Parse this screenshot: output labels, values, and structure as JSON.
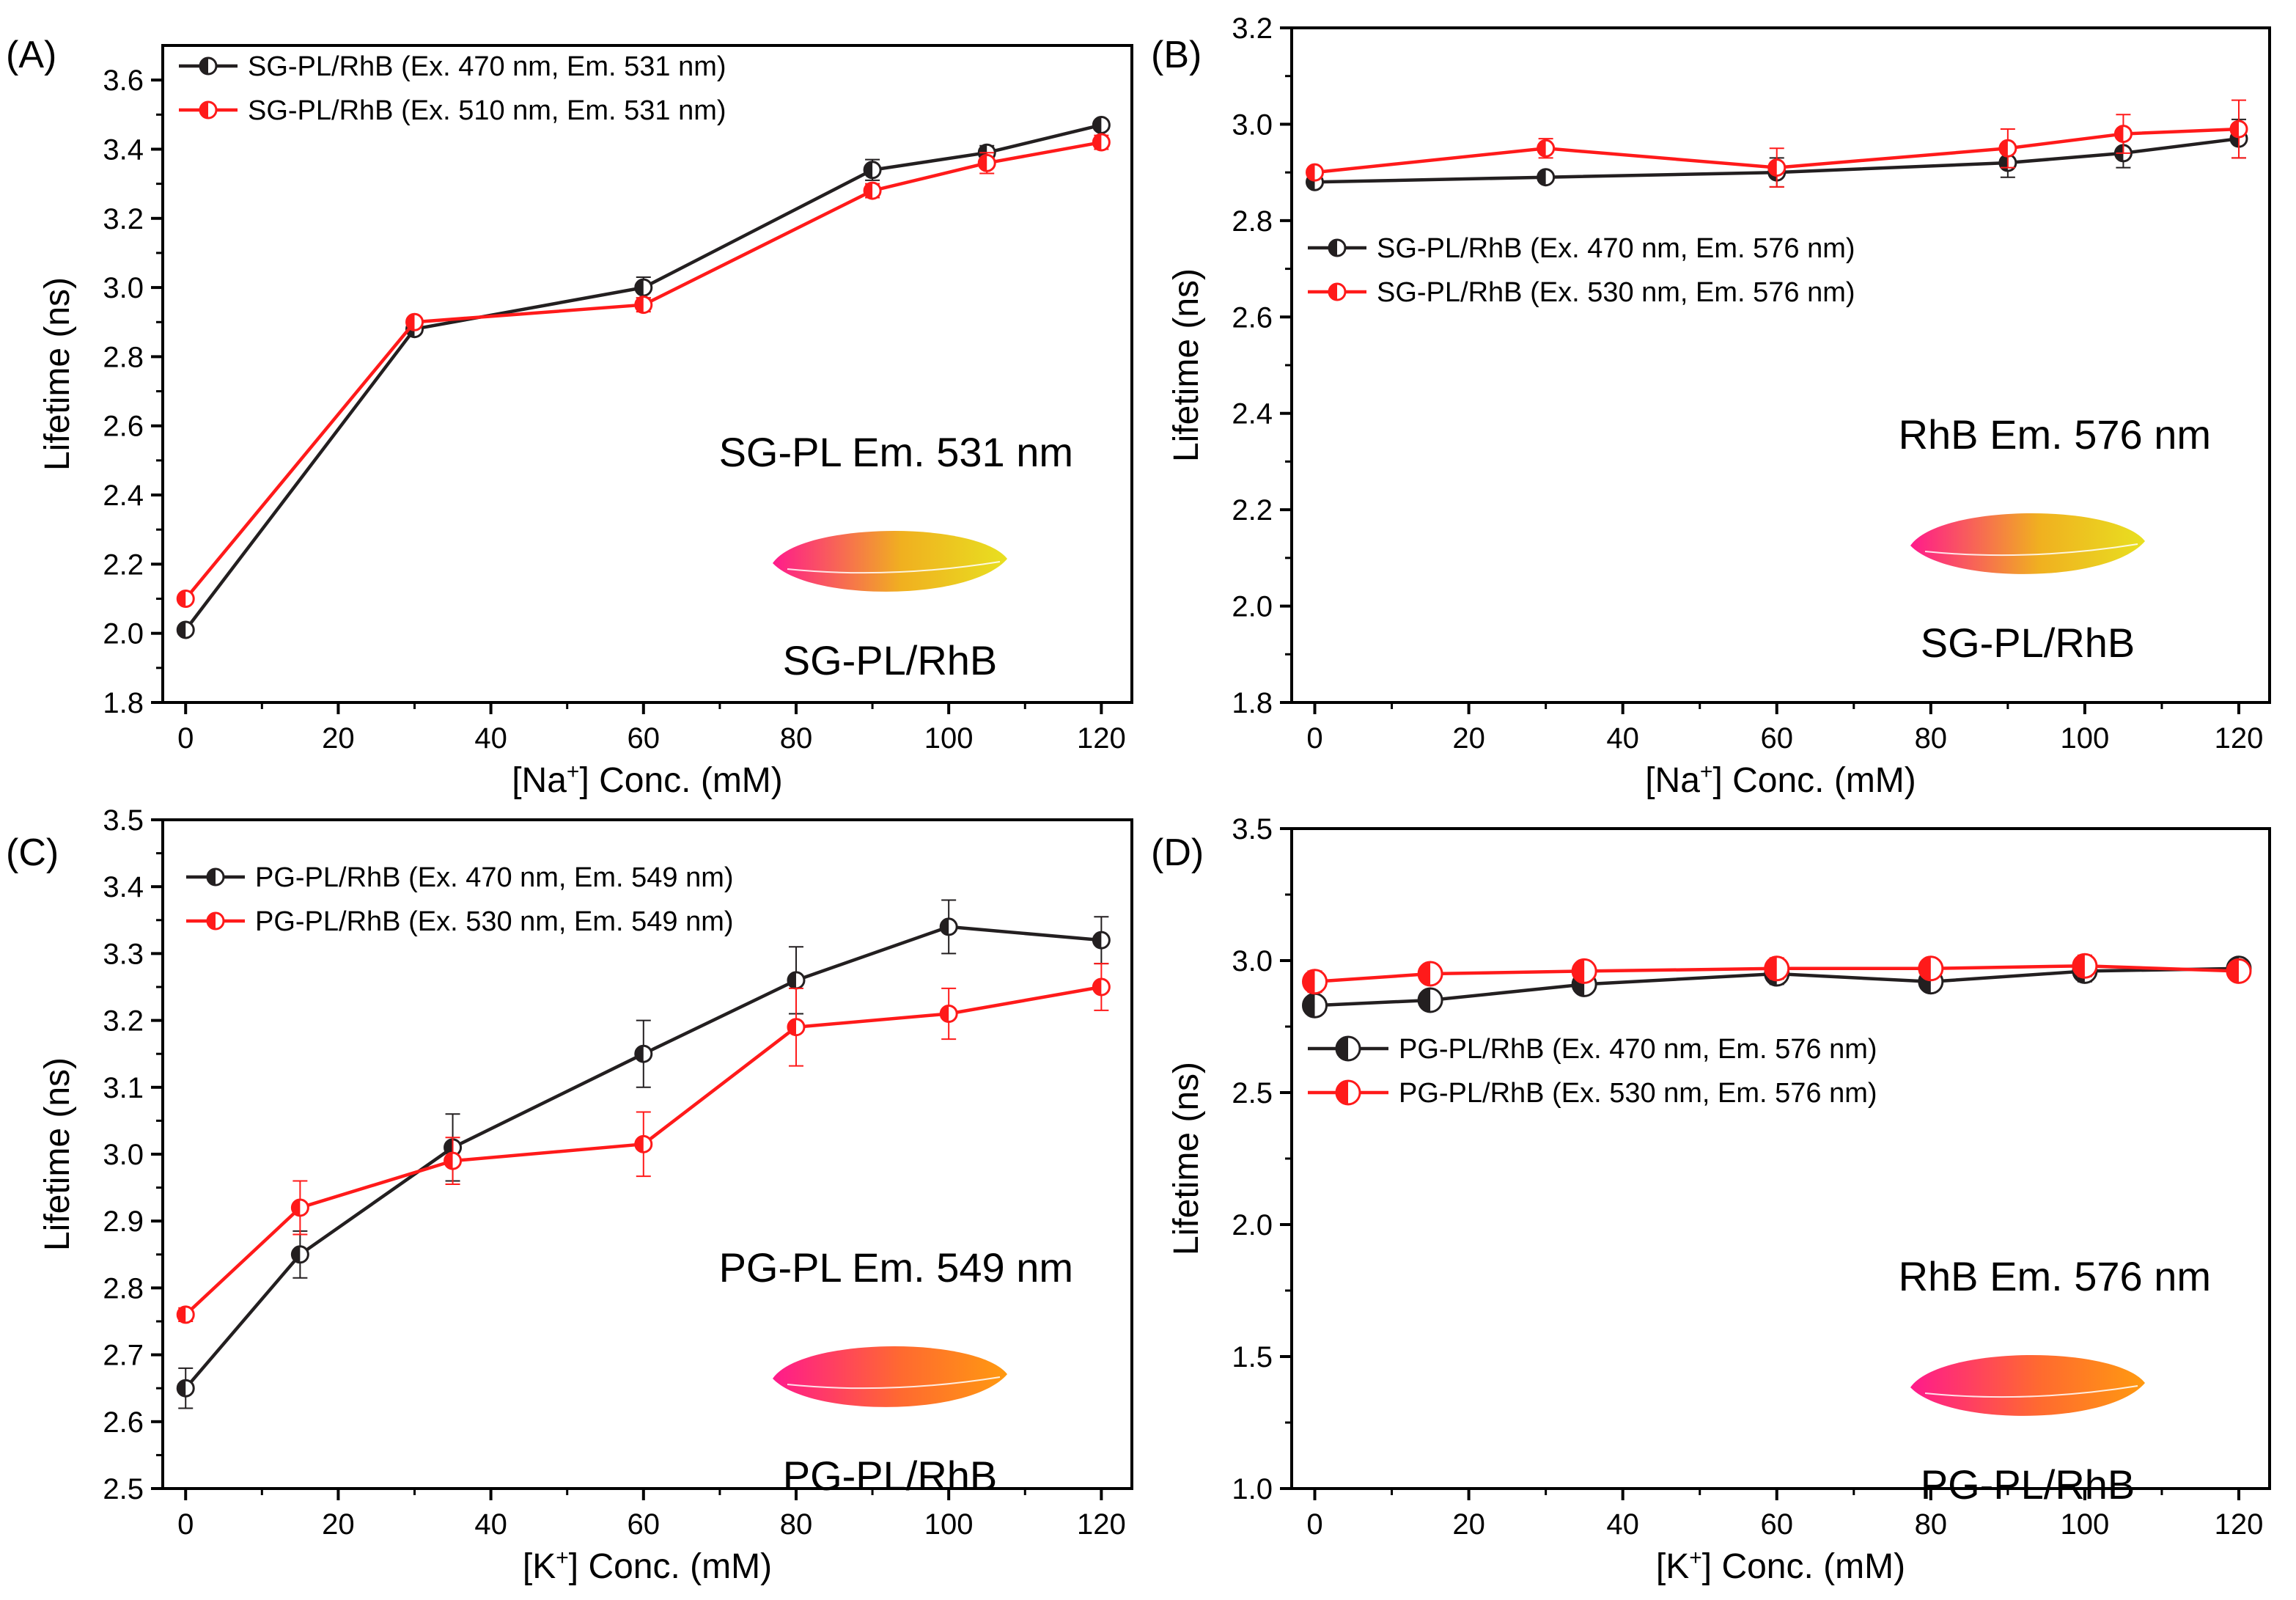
{
  "colors": {
    "black_series": "#231f20",
    "red_series": "#ff1a1a",
    "axis": "#000000"
  },
  "chart_data": [
    {
      "id": "A",
      "type": "line",
      "panel_label": "(A)",
      "xlabel_prefix": "[Na",
      "xlabel_sup": "+",
      "xlabel_suffix": "] Conc. (mM)",
      "ylabel": "Lifetime (ns)",
      "xlim": [
        -3,
        124
      ],
      "ylim": [
        1.8,
        3.7
      ],
      "xticks": [
        0,
        20,
        40,
        60,
        80,
        100,
        120
      ],
      "yticks": [
        1.8,
        2.0,
        2.2,
        2.4,
        2.6,
        2.8,
        3.0,
        3.2,
        3.4,
        3.6
      ],
      "ytick_labels": [
        "1.8",
        "2.0",
        "2.2",
        "2.4",
        "2.6",
        "2.8",
        "3.0",
        "3.2",
        "3.4",
        "3.6"
      ],
      "legend_position": "top-left",
      "annotation": "SG-PL Em. 531 nm",
      "sample_label": "SG-PL/RhB",
      "blob_colors": [
        "#ff1a8c",
        "#f0b020",
        "#e8e020"
      ],
      "series": [
        {
          "name": "SG-PL/RhB (Ex. 470 nm, Em. 531 nm)",
          "color": "#231f20",
          "x": [
            0,
            30,
            60,
            90,
            105,
            120
          ],
          "y": [
            2.01,
            2.88,
            3.0,
            3.34,
            3.39,
            3.47
          ],
          "err": [
            0.01,
            0.01,
            0.03,
            0.03,
            0.02,
            0.01
          ]
        },
        {
          "name": "SG-PL/RhB (Ex. 510 nm, Em. 531 nm)",
          "color": "#ff1a1a",
          "x": [
            0,
            30,
            60,
            90,
            105,
            120
          ],
          "y": [
            2.1,
            2.9,
            2.95,
            3.28,
            3.36,
            3.42
          ],
          "err": [
            0.01,
            0.01,
            0.02,
            0.02,
            0.03,
            0.02
          ]
        }
      ]
    },
    {
      "id": "B",
      "type": "line",
      "panel_label": "(B)",
      "xlabel_prefix": "[Na",
      "xlabel_sup": "+",
      "xlabel_suffix": "] Conc. (mM)",
      "ylabel": "Lifetime (ns)",
      "xlim": [
        -3,
        124
      ],
      "ylim": [
        1.8,
        3.2
      ],
      "xticks": [
        0,
        20,
        40,
        60,
        80,
        100,
        120
      ],
      "yticks": [
        1.8,
        2.0,
        2.2,
        2.4,
        2.6,
        2.8,
        3.0,
        3.2
      ],
      "ytick_labels": [
        "1.8",
        "2.0",
        "2.2",
        "2.4",
        "2.6",
        "2.8",
        "3.0",
        "3.2"
      ],
      "legend_position": "center-left",
      "annotation": "RhB Em. 576 nm",
      "sample_label": "SG-PL/RhB",
      "blob_colors": [
        "#ff1a8c",
        "#f0b020",
        "#e8e020"
      ],
      "series": [
        {
          "name": "SG-PL/RhB (Ex. 470 nm, Em. 576 nm)",
          "color": "#231f20",
          "x": [
            0,
            30,
            60,
            90,
            105,
            120
          ],
          "y": [
            2.88,
            2.89,
            2.9,
            2.92,
            2.94,
            2.97
          ],
          "err": [
            0.01,
            0.01,
            0.03,
            0.03,
            0.03,
            0.04
          ]
        },
        {
          "name": "SG-PL/RhB (Ex. 530 nm, Em. 576 nm)",
          "color": "#ff1a1a",
          "x": [
            0,
            30,
            60,
            90,
            105,
            120
          ],
          "y": [
            2.9,
            2.95,
            2.91,
            2.95,
            2.98,
            2.99
          ],
          "err": [
            0.01,
            0.02,
            0.04,
            0.04,
            0.04,
            0.06
          ]
        }
      ]
    },
    {
      "id": "C",
      "type": "line",
      "panel_label": "(C)",
      "xlabel_prefix": "[K",
      "xlabel_sup": "+",
      "xlabel_suffix": "] Conc. (mM)",
      "ylabel": "Lifetime (ns)",
      "xlim": [
        -3,
        124
      ],
      "ylim": [
        2.5,
        3.5
      ],
      "xticks": [
        0,
        20,
        40,
        60,
        80,
        100,
        120
      ],
      "yticks": [
        2.5,
        2.6,
        2.7,
        2.8,
        2.9,
        3.0,
        3.1,
        3.2,
        3.3,
        3.4,
        3.5
      ],
      "ytick_labels": [
        "2.5",
        "2.6",
        "2.7",
        "2.8",
        "2.9",
        "3.0",
        "3.1",
        "3.2",
        "3.3",
        "3.4",
        "3.5"
      ],
      "legend_position": "top-left",
      "annotation": "PG-PL Em. 549 nm",
      "sample_label": "PG-PL/RhB",
      "blob_colors": [
        "#ff1a8c",
        "#ff6a30",
        "#ff9a10"
      ],
      "series": [
        {
          "name": "PG-PL/RhB (Ex. 470 nm, Em. 549 nm)",
          "color": "#231f20",
          "x": [
            0,
            15,
            35,
            60,
            80,
            100,
            120
          ],
          "y": [
            2.65,
            2.85,
            3.01,
            3.15,
            3.26,
            3.34,
            3.32
          ],
          "err": [
            0.03,
            0.035,
            0.05,
            0.05,
            0.05,
            0.04,
            0.035
          ]
        },
        {
          "name": "PG-PL/RhB (Ex. 530 nm, Em. 549 nm)",
          "color": "#ff1a1a",
          "x": [
            0,
            15,
            35,
            60,
            80,
            100,
            120
          ],
          "y": [
            2.76,
            2.92,
            2.99,
            3.015,
            3.19,
            3.21,
            3.25
          ],
          "err": [
            0.01,
            0.04,
            0.035,
            0.048,
            0.058,
            0.038,
            0.035
          ]
        }
      ]
    },
    {
      "id": "D",
      "type": "line",
      "panel_label": "(D)",
      "xlabel_prefix": "[K",
      "xlabel_sup": "+",
      "xlabel_suffix": "] Conc. (mM)",
      "ylabel": "Lifetime (ns)",
      "xlim": [
        -3,
        124
      ],
      "ylim": [
        1.0,
        3.5
      ],
      "xticks": [
        0,
        20,
        40,
        60,
        80,
        100,
        120
      ],
      "yticks": [
        1.0,
        1.5,
        2.0,
        2.5,
        3.0,
        3.5
      ],
      "ytick_labels": [
        "1.0",
        "1.5",
        "2.0",
        "2.5",
        "3.0",
        "3.5"
      ],
      "legend_position": "center-left",
      "annotation": "RhB Em. 576 nm",
      "sample_label": "PG-PL/RhB",
      "blob_colors": [
        "#ff1a8c",
        "#ff6a30",
        "#ff9a10"
      ],
      "series": [
        {
          "name": "PG-PL/RhB (Ex. 470 nm, Em. 576 nm)",
          "color": "#231f20",
          "x": [
            0,
            15,
            35,
            60,
            80,
            100,
            120
          ],
          "y": [
            2.83,
            2.85,
            2.91,
            2.95,
            2.92,
            2.96,
            2.97
          ],
          "err": [
            0.02,
            0.02,
            0.02,
            0.04,
            0.03,
            0.04,
            0.02
          ]
        },
        {
          "name": "PG-PL/RhB (Ex. 530 nm, Em. 576 nm)",
          "color": "#ff1a1a",
          "x": [
            0,
            15,
            35,
            60,
            80,
            100,
            120
          ],
          "y": [
            2.92,
            2.95,
            2.96,
            2.97,
            2.97,
            2.98,
            2.96
          ],
          "err": [
            0.04,
            0.03,
            0.02,
            0.04,
            0.03,
            0.04,
            0.02
          ]
        }
      ]
    }
  ]
}
